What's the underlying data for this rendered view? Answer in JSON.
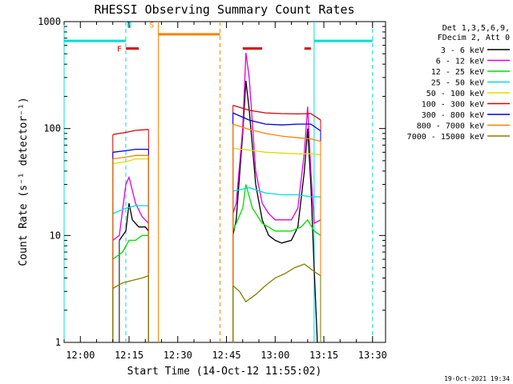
{
  "chart_data": {
    "type": "line",
    "title": "RHESSI Observing Summary Count Rates",
    "xlabel": "Start Time (14-Oct-12 11:55:02)",
    "ylabel": "Count Rate (s⁻¹ detector⁻¹)",
    "yscale": "log",
    "ylim": [
      1,
      1000
    ],
    "xlim_minutes": [
      "11:55",
      "13:34"
    ],
    "x_ticks": [
      "12:00",
      "12:15",
      "12:30",
      "12:45",
      "13:00",
      "13:15",
      "13:30"
    ],
    "y_ticks": [
      "1",
      "10",
      "100",
      "1000"
    ],
    "grid": false,
    "legend_header": [
      "Det 1,3,5,6,9,",
      "FDecim 2, Att 0"
    ],
    "timestamp": "19-Oct-2021 19:34",
    "colors": {
      "3-6": "#000000",
      "6-12": "#dd00dd",
      "12-25": "#00dd00",
      "25-50": "#00dddd",
      "50-100": "#dddd00",
      "100-300": "#dd0000",
      "300-800": "#0000dd",
      "800-7000": "#ff8000",
      "7000-15000": "#808000"
    },
    "series": [
      {
        "name": "3 - 6 keV",
        "key": "3-6",
        "segments": [
          [
            [
              "12:12",
              9
            ],
            [
              "12:14",
              11
            ],
            [
              "12:15",
              20
            ],
            [
              "12:16",
              14
            ],
            [
              "12:18",
              12
            ],
            [
              "12:20",
              12
            ],
            [
              "12:21",
              11
            ]
          ],
          [
            [
              "12:47",
              10
            ],
            [
              "12:48",
              14
            ],
            [
              "12:50",
              90
            ],
            [
              "12:51",
              280
            ],
            [
              "12:52",
              150
            ],
            [
              "12:54",
              30
            ],
            [
              "12:56",
              14
            ],
            [
              "12:58",
              10
            ],
            [
              "13:00",
              9
            ],
            [
              "13:02",
              8.5
            ],
            [
              "13:05",
              9
            ],
            [
              "13:07",
              12
            ],
            [
              "13:09",
              40
            ],
            [
              "13:10",
              100
            ],
            [
              "13:11",
              30
            ],
            [
              "13:12",
              5
            ],
            [
              "13:13",
              1
            ]
          ]
        ]
      },
      {
        "name": "6 - 12 keV",
        "key": "6-12",
        "segments": [
          [
            [
              "12:10",
              9
            ],
            [
              "12:12",
              10
            ],
            [
              "12:14",
              30
            ],
            [
              "12:15",
              35
            ],
            [
              "12:17",
              20
            ],
            [
              "12:19",
              15
            ],
            [
              "12:21",
              13
            ]
          ],
          [
            [
              "12:47",
              16
            ],
            [
              "12:48",
              20
            ],
            [
              "12:50",
              100
            ],
            [
              "12:51",
              510
            ],
            [
              "12:52",
              300
            ],
            [
              "12:54",
              40
            ],
            [
              "12:56",
              20
            ],
            [
              "12:58",
              16
            ],
            [
              "13:00",
              14
            ],
            [
              "13:02",
              14
            ],
            [
              "13:05",
              14
            ],
            [
              "13:07",
              18
            ],
            [
              "13:09",
              60
            ],
            [
              "13:10",
              160
            ],
            [
              "13:11",
              40
            ],
            [
              "13:12",
              13
            ],
            [
              "13:14",
              14
            ]
          ]
        ]
      },
      {
        "name": "12 - 25 keV",
        "key": "12-25",
        "segments": [
          [
            [
              "12:10",
              6
            ],
            [
              "12:13",
              7
            ],
            [
              "12:15",
              9
            ],
            [
              "12:17",
              9
            ],
            [
              "12:19",
              10
            ],
            [
              "12:21",
              10
            ]
          ],
          [
            [
              "12:47",
              11
            ],
            [
              "12:50",
              18
            ],
            [
              "12:51",
              30
            ],
            [
              "12:53",
              18
            ],
            [
              "12:56",
              13
            ],
            [
              "13:00",
              11
            ],
            [
              "13:05",
              11
            ],
            [
              "13:08",
              12
            ],
            [
              "13:10",
              14
            ],
            [
              "13:12",
              11
            ],
            [
              "13:14",
              10
            ]
          ]
        ]
      },
      {
        "name": "25 - 50 keV",
        "key": "25-50",
        "segments": [
          [
            [
              "12:10",
              16
            ],
            [
              "12:14",
              18
            ],
            [
              "12:17",
              19
            ],
            [
              "12:21",
              19
            ]
          ],
          [
            [
              "12:47",
              26
            ],
            [
              "12:52",
              28
            ],
            [
              "12:57",
              25
            ],
            [
              "13:02",
              24
            ],
            [
              "13:07",
              24
            ],
            [
              "13:11",
              23
            ],
            [
              "13:14",
              23
            ]
          ]
        ]
      },
      {
        "name": "50 - 100 keV",
        "key": "50-100",
        "segments": [
          [
            [
              "12:10",
              47
            ],
            [
              "12:14",
              49
            ],
            [
              "12:17",
              52
            ],
            [
              "12:21",
              52
            ]
          ],
          [
            [
              "12:47",
              65
            ],
            [
              "12:52",
              63
            ],
            [
              "12:57",
              60
            ],
            [
              "13:02",
              59
            ],
            [
              "13:07",
              58
            ],
            [
              "13:11",
              58
            ],
            [
              "13:14",
              57
            ]
          ]
        ]
      },
      {
        "name": "100 - 300 keV",
        "key": "100-300",
        "segments": [
          [
            [
              "12:10",
              88
            ],
            [
              "12:14",
              92
            ],
            [
              "12:17",
              96
            ],
            [
              "12:21",
              98
            ]
          ],
          [
            [
              "12:47",
              165
            ],
            [
              "12:52",
              148
            ],
            [
              "12:57",
              140
            ],
            [
              "13:02",
              138
            ],
            [
              "13:07",
              137
            ],
            [
              "13:11",
              138
            ],
            [
              "13:14",
              120
            ]
          ]
        ]
      },
      {
        "name": "300 - 800 keV",
        "key": "300-800",
        "segments": [
          [
            [
              "12:10",
              60
            ],
            [
              "12:14",
              62
            ],
            [
              "12:17",
              64
            ],
            [
              "12:21",
              64
            ]
          ],
          [
            [
              "12:47",
              140
            ],
            [
              "12:52",
              120
            ],
            [
              "12:57",
              110
            ],
            [
              "13:02",
              108
            ],
            [
              "13:07",
              110
            ],
            [
              "13:11",
              110
            ],
            [
              "13:14",
              95
            ]
          ]
        ]
      },
      {
        "name": "800 - 7000 keV",
        "key": "800-7000",
        "segments": [
          [
            [
              "12:10",
              52
            ],
            [
              "12:14",
              54
            ],
            [
              "12:17",
              56
            ],
            [
              "12:21",
              56
            ]
          ],
          [
            [
              "12:47",
              110
            ],
            [
              "12:52",
              98
            ],
            [
              "12:57",
              90
            ],
            [
              "13:02",
              85
            ],
            [
              "13:07",
              82
            ],
            [
              "13:11",
              80
            ],
            [
              "13:14",
              76
            ]
          ]
        ]
      },
      {
        "name": "7000 - 15000 keV",
        "key": "7000-15000",
        "segments": [
          [
            [
              "12:10",
              3.2
            ],
            [
              "12:13",
              3.6
            ],
            [
              "12:16",
              3.8
            ],
            [
              "12:19",
              4.0
            ],
            [
              "12:21",
              4.2
            ]
          ],
          [
            [
              "12:47",
              3.4
            ],
            [
              "12:49",
              3.0
            ],
            [
              "12:51",
              2.4
            ],
            [
              "12:54",
              2.8
            ],
            [
              "12:57",
              3.4
            ],
            [
              "13:00",
              4.0
            ],
            [
              "13:03",
              4.4
            ],
            [
              "13:06",
              5.0
            ],
            [
              "13:09",
              5.4
            ],
            [
              "13:12",
              4.6
            ],
            [
              "13:14",
              4.2
            ]
          ]
        ]
      }
    ],
    "annotations": [
      {
        "label": "N",
        "key": "25-50",
        "text_time": "12:15",
        "line_times": [
          "12:14"
        ]
      },
      {
        "label": "F",
        "key": "100-300",
        "text_time": "12:12",
        "bars": [
          [
            "12:14",
            "12:18"
          ],
          [
            "12:50",
            "12:56"
          ],
          [
            "13:09",
            "13:11"
          ]
        ],
        "bar_value": 560
      },
      {
        "label": "S",
        "key": "800-7000",
        "text_time": "12:22",
        "bars": [
          [
            "12:24",
            "12:43"
          ]
        ],
        "bar_value": 760
      }
    ],
    "night_lines": [
      {
        "key": "25-50",
        "time": "11:55",
        "solid": true
      },
      {
        "key": "25-50",
        "time": "12:14",
        "solid": false
      },
      {
        "key": "25-50",
        "time": "13:12",
        "solid": true
      },
      {
        "key": "25-50",
        "time": "13:30",
        "solid": false
      }
    ],
    "night_bars": [
      {
        "key": "25-50",
        "from": "11:55",
        "to": "12:14",
        "value": 660
      },
      {
        "key": "25-50",
        "from": "13:12",
        "to": "13:30",
        "value": 660
      }
    ],
    "saa_lines": [
      {
        "key": "800-7000",
        "time": "12:24",
        "solid": true
      },
      {
        "key": "800-7000",
        "time": "12:43",
        "solid": false
      }
    ]
  }
}
